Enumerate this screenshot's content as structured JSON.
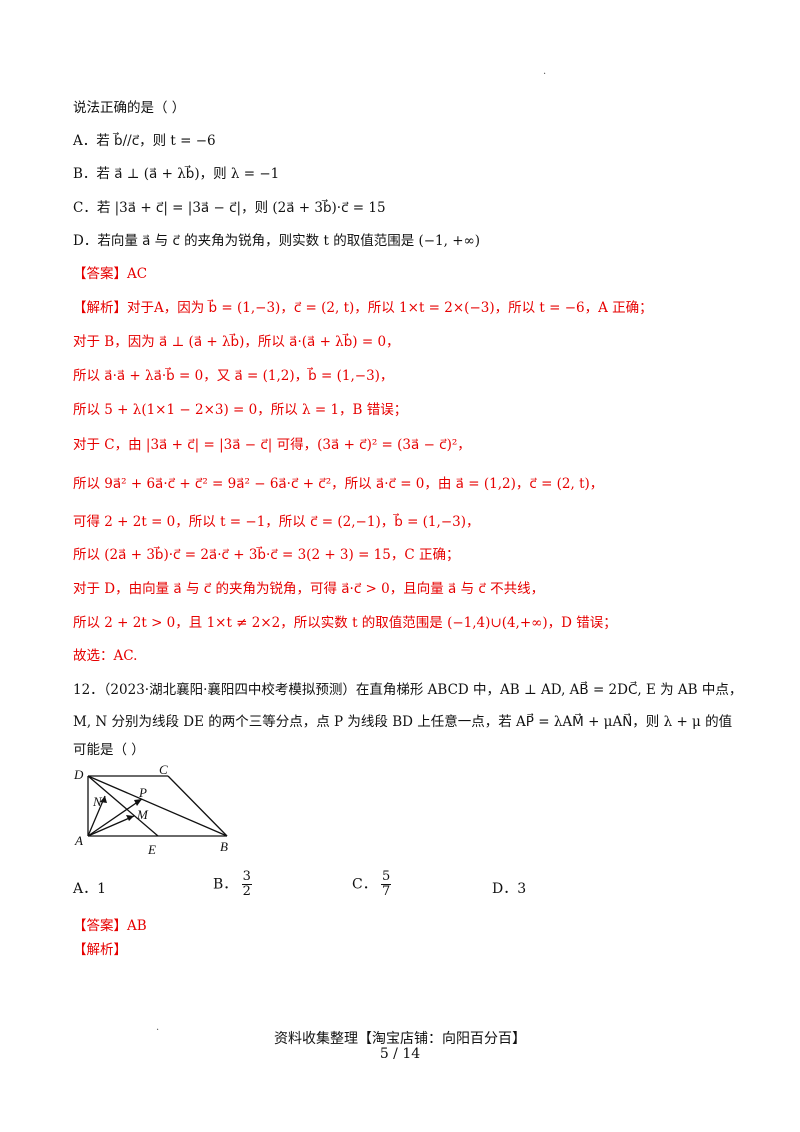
{
  "top_dot": ".",
  "intro": "说法正确的是（ ）",
  "options_q11": [
    "A．若 b⃗//c⃗，则 t = −6",
    "B．若 a⃗ ⊥ (a⃗ + λb⃗)，则 λ = −1",
    "C．若 |3a⃗ + c⃗| = |3a⃗ − c⃗|，则 (2a⃗ + 3b⃗)·c⃗ = 15",
    "D．若向量 a⃗ 与 c⃗ 的夹角为锐角，则实数 t 的取值范围是 (−1, +∞)"
  ],
  "answer_q11": {
    "label": "【答案】",
    "value": "AC"
  },
  "analysis_q11": [
    {
      "label": "【解析】",
      "text": "对于A，因为 b⃗ = (1,−3)，c⃗ = (2, t)，所以 1×t = 2×(−3)，所以 t = −6，A 正确；"
    },
    {
      "label": "",
      "text": "对于 B，因为 a⃗ ⊥ (a⃗ + λb⃗)，所以 a⃗·(a⃗ + λb⃗) = 0，"
    },
    {
      "label": "",
      "text": "所以 a⃗·a⃗ + λa⃗·b⃗ = 0，又 a⃗ = (1,2)，b⃗ = (1,−3)，"
    },
    {
      "label": "",
      "text": "所以 5 + λ(1×1 − 2×3) = 0，所以 λ = 1，B 错误；"
    },
    {
      "label": "",
      "text": "对于 C，由 |3a⃗ + c⃗| = |3a⃗ − c⃗| 可得，(3a⃗ + c⃗)² = (3a⃗ − c⃗)²，"
    },
    {
      "label": "",
      "text": "所以 9a⃗² + 6a⃗·c⃗ + c⃗² = 9a⃗² − 6a⃗·c⃗ + c⃗²，所以 a⃗·c⃗ = 0，由 a⃗ = (1,2)，c⃗ = (2, t)，"
    },
    {
      "label": "",
      "text": "可得 2 + 2t = 0，所以 t = −1，所以 c⃗ = (2,−1)，b⃗ = (1,−3)，"
    },
    {
      "label": "",
      "text": "所以 (2a⃗ + 3b⃗)·c⃗ = 2a⃗·c⃗ + 3b⃗·c⃗ = 3(2 + 3) = 15，C 正确；"
    },
    {
      "label": "",
      "text": "对于 D，由向量 a⃗ 与 c⃗ 的夹角为锐角，可得 a⃗·c⃗ > 0，且向量 a⃗ 与 c⃗ 不共线，"
    },
    {
      "label": "",
      "text": "所以 2 + 2t > 0，且 1×t ≠ 2×2，所以实数 t 的取值范围是 (−1,4)∪(4,+∞)，D 错误；"
    },
    {
      "label": "",
      "text": "故选：AC."
    }
  ],
  "q12": {
    "line1": "12．（2023·湖北襄阳·襄阳四中校考模拟预测）在直角梯形 ABCD 中，AB ⊥ AD, AB⃗ = 2DC⃗, E 为 AB 中点，",
    "line2": "M, N 分别为线段 DE 的两个三等分点，点 P 为线段 BD 上任意一点，若 AP⃗ = λAM⃗ + μAN⃗，则 λ + μ 的值",
    "line3": "可能是（ ）"
  },
  "figure_labels": {
    "D": "D",
    "C": "C",
    "N": "N",
    "P": "P",
    "M": "M",
    "A": "A",
    "E": "E",
    "B": "B"
  },
  "options_q12": {
    "a_prefix": "A．",
    "a_value": "1",
    "b_prefix": "B．",
    "b_num": "3",
    "b_den": "2",
    "c_prefix": "C．",
    "c_num": "5",
    "c_den": "7",
    "d_prefix": "D．",
    "d_value": "3"
  },
  "answer_q12": {
    "label": "【答案】",
    "value": "AB"
  },
  "analysis_q12_label": "【解析】",
  "footer": {
    "dot": ".",
    "source": "资料收集整理【淘宝店铺：向阳百分百】",
    "page": "5 / 14"
  }
}
